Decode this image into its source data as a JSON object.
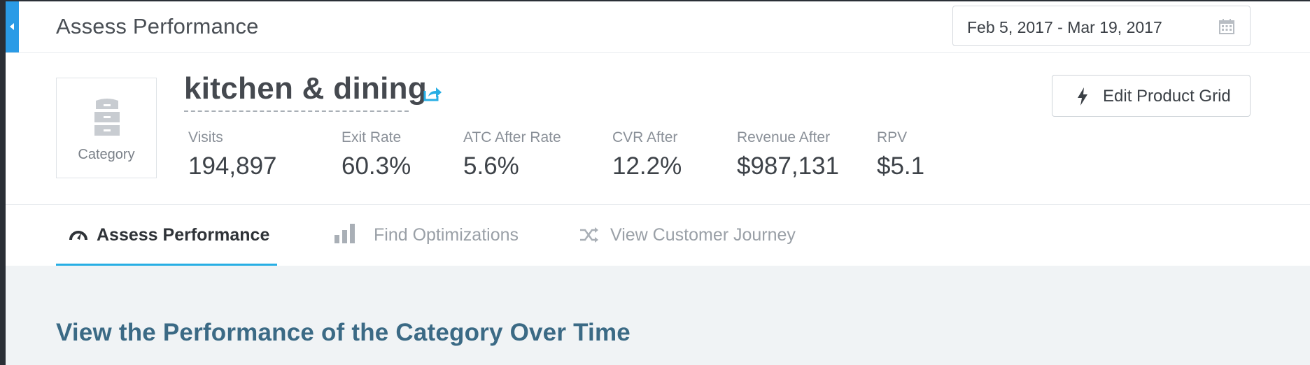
{
  "header": {
    "title": "Assess Performance",
    "date_range": "Feb 5, 2017 - Mar 19, 2017"
  },
  "entity": {
    "type_label": "Category",
    "name": "kitchen & dining",
    "edit_button_label": "Edit Product Grid"
  },
  "metrics": [
    {
      "label": "Visits",
      "value": "194,897"
    },
    {
      "label": "Exit Rate",
      "value": "60.3%"
    },
    {
      "label": "ATC After Rate",
      "value": "5.6%"
    },
    {
      "label": "CVR After",
      "value": "12.2%"
    },
    {
      "label": "Revenue After",
      "value": "$987,131"
    },
    {
      "label": "RPV",
      "value": "$5.1"
    }
  ],
  "tabs": [
    {
      "label": "Assess Performance",
      "active": true,
      "icon": "gauge-icon"
    },
    {
      "label": "Find Optimizations",
      "active": false,
      "icon": "bar-chart-icon"
    },
    {
      "label": "View Customer Journey",
      "active": false,
      "icon": "shuffle-icon"
    }
  ],
  "content": {
    "section_title": "View the Performance of the Category Over Time"
  },
  "colors": {
    "accent": "#27aee4",
    "sidebar_tab": "#2a9be6",
    "section_title": "#3b6a85"
  }
}
